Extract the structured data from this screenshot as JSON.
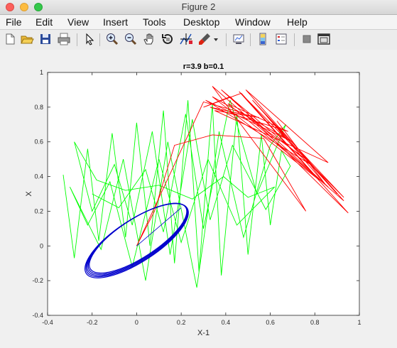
{
  "window": {
    "title": "Figure 2"
  },
  "menu": {
    "items": [
      "File",
      "Edit",
      "View",
      "Insert",
      "Tools",
      "Desktop",
      "Window",
      "Help"
    ]
  },
  "toolbar": {
    "icons": [
      "new-figure-icon",
      "open-file-icon",
      "save-icon",
      "print-icon",
      "pointer-icon",
      "zoom-in-icon",
      "zoom-out-icon",
      "pan-hand-icon",
      "rotate-3d-icon",
      "data-cursor-icon",
      "brush-icon",
      "dropdown-arrow-icon",
      "link-plot-icon",
      "colorbar-icon",
      "legend-icon",
      "hide-plot-tools-icon",
      "show-plot-tools-icon"
    ]
  },
  "chart_data": {
    "type": "line",
    "title": "r=3.9 b=0.1",
    "xlabel": "X-1",
    "ylabel": "X",
    "xlim": [
      -0.4,
      1
    ],
    "ylim": [
      -0.4,
      1
    ],
    "xticks": [
      "-0.4",
      "-0.2",
      "0",
      "0.2",
      "0.4",
      "0.6",
      "0.8",
      "1"
    ],
    "yticks": [
      "-0.4",
      "-0.2",
      "0",
      "0.2",
      "0.4",
      "0.6",
      "0.8",
      "1"
    ],
    "grid": false,
    "colors": {
      "red": "#ff0000",
      "green": "#00ff00",
      "blue": "#0000cc"
    },
    "series": [
      {
        "color": "#0000cc",
        "shape": "ellipse",
        "center": [
          0,
          0.03
        ],
        "radii": [
          0.27,
          0.22
        ],
        "tilt_deg": 33
      },
      {
        "color": "#00ff00",
        "points": [
          [
            -0.33,
            0.41
          ],
          [
            -0.28,
            -0.07
          ],
          [
            -0.22,
            0.56
          ],
          [
            -0.17,
            0.03
          ],
          [
            -0.11,
            0.65
          ],
          [
            -0.05,
            0.05
          ],
          [
            0.0,
            0.71
          ],
          [
            0.06,
            0.0
          ],
          [
            0.12,
            0.78
          ],
          [
            0.17,
            -0.1
          ],
          [
            0.23,
            0.84
          ],
          [
            0.28,
            -0.15
          ],
          [
            0.34,
            0.82
          ],
          [
            0.38,
            -0.17
          ],
          [
            0.45,
            0.76
          ],
          [
            0.5,
            -0.05
          ],
          [
            0.56,
            0.64
          ],
          [
            0.6,
            0.12
          ],
          [
            0.65,
            0.55
          ],
          [
            0.69,
            0.46
          ],
          [
            0.58,
            0.21
          ],
          [
            0.43,
            0.58
          ],
          [
            0.33,
            0.15
          ],
          [
            0.25,
            0.73
          ],
          [
            0.15,
            -0.05
          ],
          [
            0.07,
            0.66
          ],
          [
            -0.02,
            0.12
          ],
          [
            -0.1,
            0.47
          ],
          [
            -0.2,
            0.2
          ],
          [
            -0.28,
            0.6
          ],
          [
            -0.18,
            0.38
          ],
          [
            -0.05,
            0.32
          ],
          [
            0.1,
            0.35
          ],
          [
            0.25,
            0.27
          ],
          [
            0.39,
            0.4
          ],
          [
            0.5,
            0.28
          ],
          [
            0.62,
            0.34
          ],
          [
            0.45,
            0.12
          ],
          [
            0.32,
            0.5
          ],
          [
            0.2,
            0.02
          ],
          [
            0.1,
            0.5
          ],
          [
            -0.02,
            -0.12
          ],
          [
            -0.12,
            0.37
          ],
          [
            -0.22,
            0.12
          ],
          [
            -0.3,
            0.34
          ],
          [
            -0.16,
            -0.02
          ],
          [
            -0.06,
            0.5
          ],
          [
            0.04,
            -0.2
          ],
          [
            0.14,
            0.6
          ],
          [
            0.27,
            -0.24
          ],
          [
            0.37,
            0.66
          ],
          [
            0.48,
            0.05
          ],
          [
            0.6,
            0.58
          ],
          [
            0.67,
            0.7
          ],
          [
            0.54,
            0.3
          ],
          [
            0.42,
            0.84
          ],
          [
            0.3,
            0.1
          ],
          [
            0.22,
            0.76
          ],
          [
            0.12,
            0.08
          ],
          [
            0.04,
            0.44
          ],
          [
            -0.08,
            0.22
          ],
          [
            -0.2,
            0.3
          ]
        ]
      },
      {
        "color": "#ff0000",
        "points": [
          [
            0.0,
            0.0
          ],
          [
            0.3,
            0.83
          ],
          [
            0.47,
            0.77
          ],
          [
            0.76,
            0.5
          ],
          [
            0.63,
            0.72
          ],
          [
            0.85,
            0.35
          ],
          [
            0.55,
            0.8
          ],
          [
            0.9,
            0.3
          ],
          [
            0.52,
            0.84
          ],
          [
            0.93,
            0.28
          ],
          [
            0.46,
            0.89
          ],
          [
            0.95,
            0.19
          ],
          [
            0.42,
            0.86
          ],
          [
            0.3,
            0.8
          ],
          [
            0.47,
            0.88
          ],
          [
            0.82,
            0.38
          ],
          [
            0.34,
            0.86
          ],
          [
            0.7,
            0.6
          ],
          [
            0.31,
            0.84
          ],
          [
            0.78,
            0.47
          ],
          [
            0.38,
            0.9
          ],
          [
            0.86,
            0.34
          ],
          [
            0.41,
            0.82
          ],
          [
            0.68,
            0.66
          ],
          [
            0.33,
            0.8
          ],
          [
            0.55,
            0.74
          ],
          [
            0.35,
            0.78
          ],
          [
            0.86,
            0.48
          ],
          [
            0.49,
            0.9
          ],
          [
            0.93,
            0.26
          ],
          [
            0.34,
            0.92
          ],
          [
            0.76,
            0.2
          ],
          [
            0.57,
            0.62
          ],
          [
            0.34,
            0.64
          ],
          [
            0.17,
            0.58
          ],
          [
            0.08,
            0.2
          ],
          [
            0.0,
            0.0
          ]
        ]
      }
    ]
  }
}
